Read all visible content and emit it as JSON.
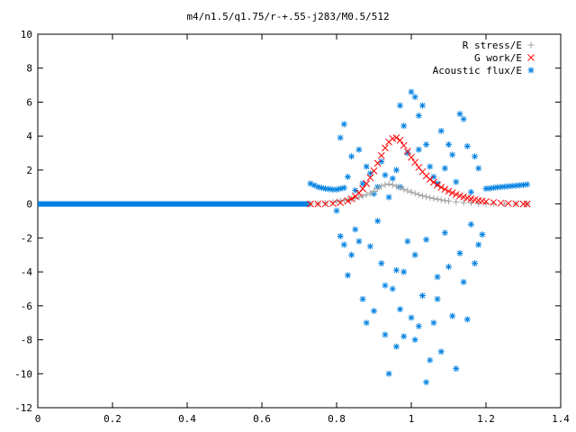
{
  "chart_data": {
    "type": "scatter",
    "title": "m4/n1.5/q1.75/r-+.55-j283/M0.5/512",
    "xlabel": "",
    "ylabel": "",
    "xlim": [
      0,
      1.4
    ],
    "ylim": [
      -12,
      10
    ],
    "x_ticks": [
      "0",
      "0.2",
      "0.4",
      "0.6",
      "0.8",
      "1",
      "1.2",
      "1.4"
    ],
    "y_ticks": [
      "10",
      "8",
      "6",
      "4",
      "2",
      "0",
      "-2",
      "-4",
      "-6",
      "-8",
      "-10",
      "-12"
    ],
    "grid": false,
    "legend_position": "top-right",
    "series": [
      {
        "name": "R stress/E",
        "marker": "+",
        "color": "#a0a0a0",
        "points": [
          [
            0.73,
            0.0
          ],
          [
            0.75,
            0.02
          ],
          [
            0.77,
            0.05
          ],
          [
            0.79,
            0.1
          ],
          [
            0.8,
            0.14
          ],
          [
            0.81,
            0.18
          ],
          [
            0.82,
            0.22
          ],
          [
            0.83,
            0.26
          ],
          [
            0.84,
            0.3
          ],
          [
            0.85,
            0.34
          ],
          [
            0.86,
            0.4
          ],
          [
            0.87,
            0.46
          ],
          [
            0.88,
            0.54
          ],
          [
            0.89,
            0.64
          ],
          [
            0.9,
            0.76
          ],
          [
            0.91,
            0.9
          ],
          [
            0.92,
            1.04
          ],
          [
            0.93,
            1.14
          ],
          [
            0.94,
            1.18
          ],
          [
            0.95,
            1.12
          ],
          [
            0.96,
            1.04
          ],
          [
            0.97,
            0.95
          ],
          [
            0.98,
            0.86
          ],
          [
            0.99,
            0.78
          ],
          [
            1.0,
            0.7
          ],
          [
            1.01,
            0.62
          ],
          [
            1.02,
            0.55
          ],
          [
            1.03,
            0.48
          ],
          [
            1.04,
            0.42
          ],
          [
            1.05,
            0.37
          ],
          [
            1.06,
            0.32
          ],
          [
            1.07,
            0.28
          ],
          [
            1.08,
            0.24
          ],
          [
            1.09,
            0.2
          ],
          [
            1.1,
            0.17
          ],
          [
            1.12,
            0.12
          ],
          [
            1.14,
            0.08
          ],
          [
            1.16,
            0.05
          ],
          [
            1.18,
            0.03
          ],
          [
            1.2,
            0.02
          ],
          [
            1.22,
            0.01
          ],
          [
            1.25,
            0.0
          ],
          [
            1.28,
            0.0
          ],
          [
            1.31,
            0.0
          ]
        ]
      },
      {
        "name": "G work/E",
        "marker": "x",
        "color": "#ff0000",
        "points": [
          [
            0.73,
            0.0
          ],
          [
            0.75,
            0.0
          ],
          [
            0.77,
            0.01
          ],
          [
            0.79,
            0.03
          ],
          [
            0.81,
            0.08
          ],
          [
            0.83,
            0.18
          ],
          [
            0.84,
            0.3
          ],
          [
            0.85,
            0.45
          ],
          [
            0.86,
            0.65
          ],
          [
            0.87,
            0.9
          ],
          [
            0.88,
            1.2
          ],
          [
            0.89,
            1.55
          ],
          [
            0.9,
            1.95
          ],
          [
            0.91,
            2.4
          ],
          [
            0.92,
            2.85
          ],
          [
            0.93,
            3.3
          ],
          [
            0.94,
            3.65
          ],
          [
            0.95,
            3.85
          ],
          [
            0.96,
            3.9
          ],
          [
            0.97,
            3.75
          ],
          [
            0.98,
            3.45
          ],
          [
            0.99,
            3.1
          ],
          [
            1.0,
            2.75
          ],
          [
            1.01,
            2.45
          ],
          [
            1.02,
            2.15
          ],
          [
            1.03,
            1.9
          ],
          [
            1.04,
            1.65
          ],
          [
            1.05,
            1.45
          ],
          [
            1.06,
            1.28
          ],
          [
            1.07,
            1.12
          ],
          [
            1.08,
            0.98
          ],
          [
            1.09,
            0.86
          ],
          [
            1.1,
            0.75
          ],
          [
            1.11,
            0.65
          ],
          [
            1.12,
            0.56
          ],
          [
            1.13,
            0.48
          ],
          [
            1.14,
            0.41
          ],
          [
            1.15,
            0.35
          ],
          [
            1.16,
            0.3
          ],
          [
            1.17,
            0.25
          ],
          [
            1.18,
            0.21
          ],
          [
            1.19,
            0.17
          ],
          [
            1.2,
            0.14
          ],
          [
            1.22,
            0.09
          ],
          [
            1.24,
            0.05
          ],
          [
            1.26,
            0.03
          ],
          [
            1.28,
            0.01
          ],
          [
            1.3,
            0.0
          ],
          [
            1.31,
            0.0
          ]
        ]
      },
      {
        "name": "Acoustic flux/E",
        "marker": "*",
        "color": "#0080e0",
        "points": [
          [
            0.73,
            1.2
          ],
          [
            0.74,
            1.1
          ],
          [
            0.75,
            1.0
          ],
          [
            0.76,
            0.95
          ],
          [
            0.77,
            0.9
          ],
          [
            0.78,
            0.88
          ],
          [
            0.79,
            0.85
          ],
          [
            0.8,
            0.85
          ],
          [
            0.81,
            0.9
          ],
          [
            0.82,
            0.95
          ],
          [
            1.2,
            0.9
          ],
          [
            1.21,
            0.92
          ],
          [
            1.22,
            0.95
          ],
          [
            1.23,
            0.98
          ],
          [
            1.24,
            1.0
          ],
          [
            1.25,
            1.02
          ],
          [
            1.26,
            1.04
          ],
          [
            1.27,
            1.06
          ],
          [
            1.28,
            1.08
          ],
          [
            1.29,
            1.1
          ],
          [
            1.3,
            1.12
          ],
          [
            1.31,
            1.15
          ],
          [
            0.81,
            3.9
          ],
          [
            0.82,
            4.7
          ],
          [
            0.83,
            1.6
          ],
          [
            0.84,
            2.8
          ],
          [
            0.85,
            0.8
          ],
          [
            0.86,
            3.2
          ],
          [
            0.87,
            1.2
          ],
          [
            0.88,
            2.2
          ],
          [
            0.89,
            1.8
          ],
          [
            0.9,
            0.6
          ],
          [
            0.91,
            1.0
          ],
          [
            0.92,
            2.5
          ],
          [
            0.93,
            1.7
          ],
          [
            0.94,
            0.4
          ],
          [
            0.95,
            1.5
          ],
          [
            0.96,
            2.0
          ],
          [
            0.97,
            1.0
          ],
          [
            0.98,
            4.6
          ],
          [
            0.99,
            3.0
          ],
          [
            1.0,
            6.6
          ],
          [
            1.01,
            6.3
          ],
          [
            1.02,
            3.2
          ],
          [
            1.03,
            5.8
          ],
          [
            1.04,
            3.5
          ],
          [
            1.05,
            2.2
          ],
          [
            1.06,
            1.6
          ],
          [
            1.07,
            1.2
          ],
          [
            1.08,
            4.3
          ],
          [
            1.09,
            2.1
          ],
          [
            1.1,
            3.5
          ],
          [
            1.11,
            2.9
          ],
          [
            1.12,
            1.3
          ],
          [
            1.13,
            5.3
          ],
          [
            1.14,
            5.0
          ],
          [
            1.15,
            3.4
          ],
          [
            1.16,
            0.7
          ],
          [
            1.17,
            2.8
          ],
          [
            1.18,
            2.1
          ],
          [
            1.02,
            5.2
          ],
          [
            0.97,
            5.8
          ],
          [
            0.8,
            -0.4
          ],
          [
            0.81,
            -1.9
          ],
          [
            0.82,
            -2.4
          ],
          [
            0.83,
            -4.2
          ],
          [
            0.84,
            -3.0
          ],
          [
            0.85,
            -1.5
          ],
          [
            0.86,
            -2.2
          ],
          [
            0.87,
            -5.6
          ],
          [
            0.88,
            -7.0
          ],
          [
            0.89,
            -2.5
          ],
          [
            0.9,
            -6.3
          ],
          [
            0.91,
            -1.0
          ],
          [
            0.92,
            -3.5
          ],
          [
            0.93,
            -7.7
          ],
          [
            0.94,
            -10.0
          ],
          [
            0.95,
            -5.0
          ],
          [
            0.96,
            -3.9
          ],
          [
            0.97,
            -6.2
          ],
          [
            0.98,
            -4.0
          ],
          [
            0.99,
            -2.2
          ],
          [
            1.0,
            -6.7
          ],
          [
            1.01,
            -3.0
          ],
          [
            1.02,
            -7.2
          ],
          [
            1.03,
            -5.4
          ],
          [
            1.04,
            -2.1
          ],
          [
            1.05,
            -9.2
          ],
          [
            1.06,
            -7.0
          ],
          [
            1.07,
            -4.3
          ],
          [
            1.08,
            -8.7
          ],
          [
            1.09,
            -1.7
          ],
          [
            1.1,
            -3.7
          ],
          [
            1.11,
            -6.6
          ],
          [
            1.12,
            -9.7
          ],
          [
            1.13,
            -2.9
          ],
          [
            1.14,
            -4.6
          ],
          [
            1.15,
            -6.8
          ],
          [
            1.16,
            -1.2
          ],
          [
            1.17,
            -3.5
          ],
          [
            1.18,
            -2.4
          ],
          [
            1.19,
            -1.8
          ],
          [
            1.04,
            -10.5
          ],
          [
            0.98,
            -7.8
          ],
          [
            1.01,
            -8.0
          ],
          [
            0.96,
            -8.4
          ],
          [
            1.07,
            -5.6
          ],
          [
            0.93,
            -4.8
          ]
        ]
      }
    ]
  }
}
